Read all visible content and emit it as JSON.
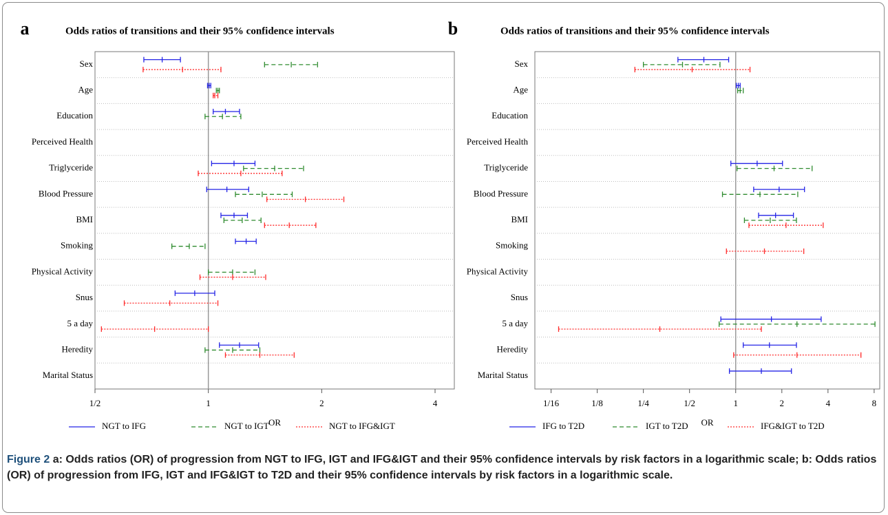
{
  "chart_data": [
    {
      "type": "forest",
      "panel_label": "a",
      "title": "Odds ratios of transitions and their 95% confidence intervals",
      "xlabel": "OR",
      "xscale": "log",
      "categories": [
        "Sex",
        "Age",
        "Education",
        "Perceived Health",
        "Triglyceride",
        "Blood Pressure",
        "BMI",
        "Smoking",
        "Physical Activity",
        "Snus",
        "5 a day",
        "Heredity",
        "Marital Status"
      ],
      "xlim": [
        0.5,
        4.5
      ],
      "xticks": [
        {
          "value": 0.5,
          "label": "1/2"
        },
        1,
        2,
        4
      ],
      "series": [
        {
          "name": "NGT to IFG",
          "color": "#2323e6",
          "line_style": "solid",
          "values": [
            0.754,
            1.005,
            1.11,
            null,
            1.17,
            1.12,
            1.17,
            1.26,
            null,
            0.92,
            null,
            1.21,
            null
          ],
          "lower": [
            0.674,
            0.995,
            1.03,
            null,
            1.02,
            0.99,
            1.08,
            1.18,
            null,
            0.816,
            null,
            1.07,
            null
          ],
          "upper": [
            0.843,
            1.015,
            1.21,
            null,
            1.33,
            1.28,
            1.27,
            1.34,
            null,
            1.04,
            null,
            1.36,
            null
          ]
        },
        {
          "name": "NGT to IGT",
          "color": "#2e8b2e",
          "line_style": "dashed",
          "values": [
            1.66,
            1.06,
            1.09,
            null,
            1.5,
            1.39,
            1.23,
            0.89,
            1.16,
            null,
            null,
            1.16,
            null
          ],
          "lower": [
            1.41,
            1.05,
            0.98,
            null,
            1.24,
            1.18,
            1.1,
            0.8,
            1.0,
            null,
            null,
            0.98,
            null
          ],
          "upper": [
            1.95,
            1.07,
            1.22,
            null,
            1.79,
            1.67,
            1.38,
            0.98,
            1.33,
            null,
            null,
            1.37,
            null
          ]
        },
        {
          "name": "NGT to IFG&IGT",
          "color": "#ff2a2a",
          "line_style": "dotted",
          "values": [
            0.854,
            1.04,
            null,
            null,
            1.22,
            1.81,
            1.64,
            null,
            1.16,
            0.79,
            0.72,
            1.37,
            null
          ],
          "lower": [
            0.671,
            1.03,
            null,
            null,
            0.94,
            1.43,
            1.41,
            null,
            0.95,
            0.598,
            0.52,
            1.11,
            null
          ],
          "upper": [
            1.08,
            1.06,
            null,
            null,
            1.57,
            2.29,
            1.93,
            null,
            1.42,
            1.06,
            1.0,
            1.69,
            null
          ]
        }
      ]
    },
    {
      "type": "forest",
      "panel_label": "b",
      "title": "Odds ratios of transitions and their 95% confidence intervals",
      "xlabel": "OR",
      "xscale": "log",
      "categories": [
        "Sex",
        "Age",
        "Education",
        "Perceived Health",
        "Triglyceride",
        "Blood Pressure",
        "BMI",
        "Smoking",
        "Physical Activity",
        "Snus",
        "5 a day",
        "Heredity",
        "Marital Status"
      ],
      "xlim": [
        0.049,
        8.7
      ],
      "xticks": [
        {
          "value": 0.0625,
          "label": "1/16"
        },
        {
          "value": 0.125,
          "label": "1/8"
        },
        {
          "value": 0.25,
          "label": "1/4"
        },
        {
          "value": 0.5,
          "label": "1/2"
        },
        1,
        2,
        4,
        8
      ],
      "series": [
        {
          "name": "IFG to T2D",
          "color": "#2323e6",
          "line_style": "solid",
          "values": [
            0.62,
            1.04,
            null,
            null,
            1.38,
            1.92,
            1.82,
            null,
            null,
            null,
            1.71,
            1.66,
            1.47
          ],
          "lower": [
            0.42,
            1.01,
            null,
            null,
            0.93,
            1.31,
            1.41,
            null,
            null,
            null,
            0.8,
            1.12,
            0.91
          ],
          "upper": [
            0.9,
            1.07,
            null,
            null,
            2.02,
            2.81,
            2.38,
            null,
            null,
            null,
            3.61,
            2.49,
            2.31
          ]
        },
        {
          "name": "IGT to T2D",
          "color": "#2e8b2e",
          "line_style": "dashed",
          "values": [
            0.45,
            1.07,
            null,
            null,
            1.78,
            1.44,
            1.68,
            null,
            null,
            null,
            2.51,
            null,
            null
          ],
          "lower": [
            0.25,
            1.03,
            null,
            null,
            1.02,
            0.82,
            1.14,
            null,
            null,
            null,
            0.78,
            null,
            null
          ],
          "upper": [
            0.79,
            1.12,
            null,
            null,
            3.15,
            2.54,
            2.49,
            null,
            null,
            null,
            8.1,
            null,
            null
          ]
        },
        {
          "name": "IFG&IGT to T2D",
          "color": "#ff2a2a",
          "line_style": "dotted",
          "values": [
            0.52,
            null,
            null,
            null,
            null,
            null,
            2.13,
            1.54,
            null,
            null,
            0.32,
            2.51,
            null
          ],
          "lower": [
            0.22,
            null,
            null,
            null,
            null,
            null,
            1.22,
            0.87,
            null,
            null,
            0.07,
            0.97,
            null
          ],
          "upper": [
            1.24,
            null,
            null,
            null,
            null,
            null,
            3.72,
            2.78,
            null,
            null,
            1.47,
            6.56,
            null
          ]
        }
      ]
    }
  ],
  "caption": {
    "label": "Figure 2",
    "text": "a: Odds ratios (OR) of progression from NGT to IFG, IGT and IFG&IGT and their 95% confidence intervals by risk factors in a logarithmic scale; b: Odds ratios (OR) of progression from IFG, IGT and IFG&IGT to T2D and their 95% confidence intervals by risk factors in a logarithmic scale."
  }
}
